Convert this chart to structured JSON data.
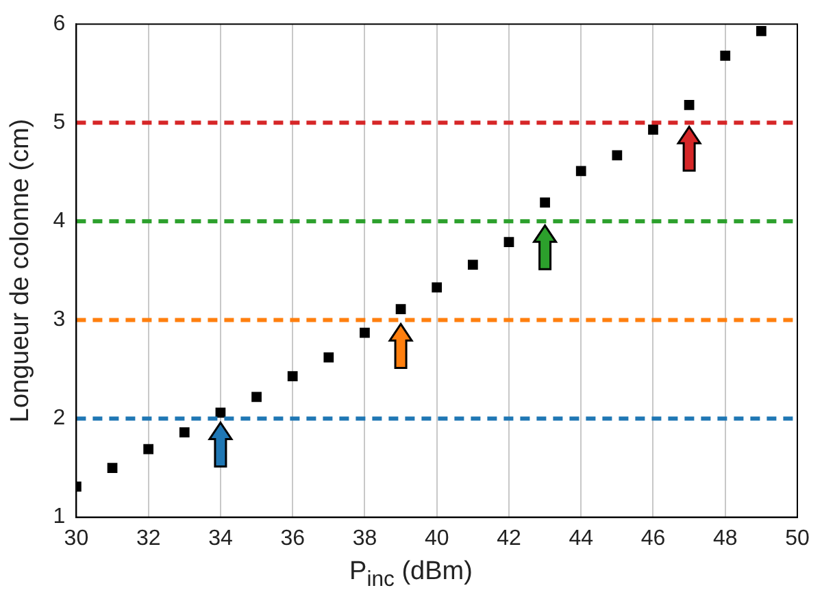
{
  "chart_data": {
    "type": "scatter",
    "xlabel": "P$_{inc}$ (dBm)",
    "ylabel": "Longueur de colonne (cm)",
    "x": [
      30,
      31,
      32,
      33,
      34,
      35,
      36,
      37,
      38,
      39,
      40,
      41,
      42,
      43,
      44,
      45,
      46,
      47,
      48,
      49
    ],
    "series": [
      {
        "color": "#000000",
        "values": [
          1.31,
          1.5,
          1.69,
          1.86,
          2.06,
          2.22,
          2.43,
          2.62,
          2.87,
          3.11,
          3.33,
          3.56,
          3.79,
          4.19,
          4.51,
          4.67,
          4.93,
          5.18,
          5.68,
          5.93
        ]
      }
    ],
    "xlim": [
      30,
      50
    ],
    "xticks": [
      30,
      32,
      34,
      36,
      38,
      40,
      42,
      44,
      46,
      48,
      50
    ],
    "ylim": [
      1,
      6
    ],
    "yticks": [
      1,
      2,
      3,
      4,
      5,
      6
    ],
    "grid": "x",
    "marker": "square",
    "legend": false,
    "ref_lines": [
      {
        "axis": "y",
        "value": 2,
        "color": "#1f77b4",
        "line_style": "dashed"
      },
      {
        "axis": "y",
        "value": 3,
        "color": "#ff7f0e",
        "line_style": "dashed"
      },
      {
        "axis": "y",
        "value": 4,
        "color": "#2ca02c",
        "line_style": "dashed"
      },
      {
        "axis": "y",
        "value": 5,
        "color": "#d62728",
        "line_style": "dashed"
      }
    ]
  }
}
